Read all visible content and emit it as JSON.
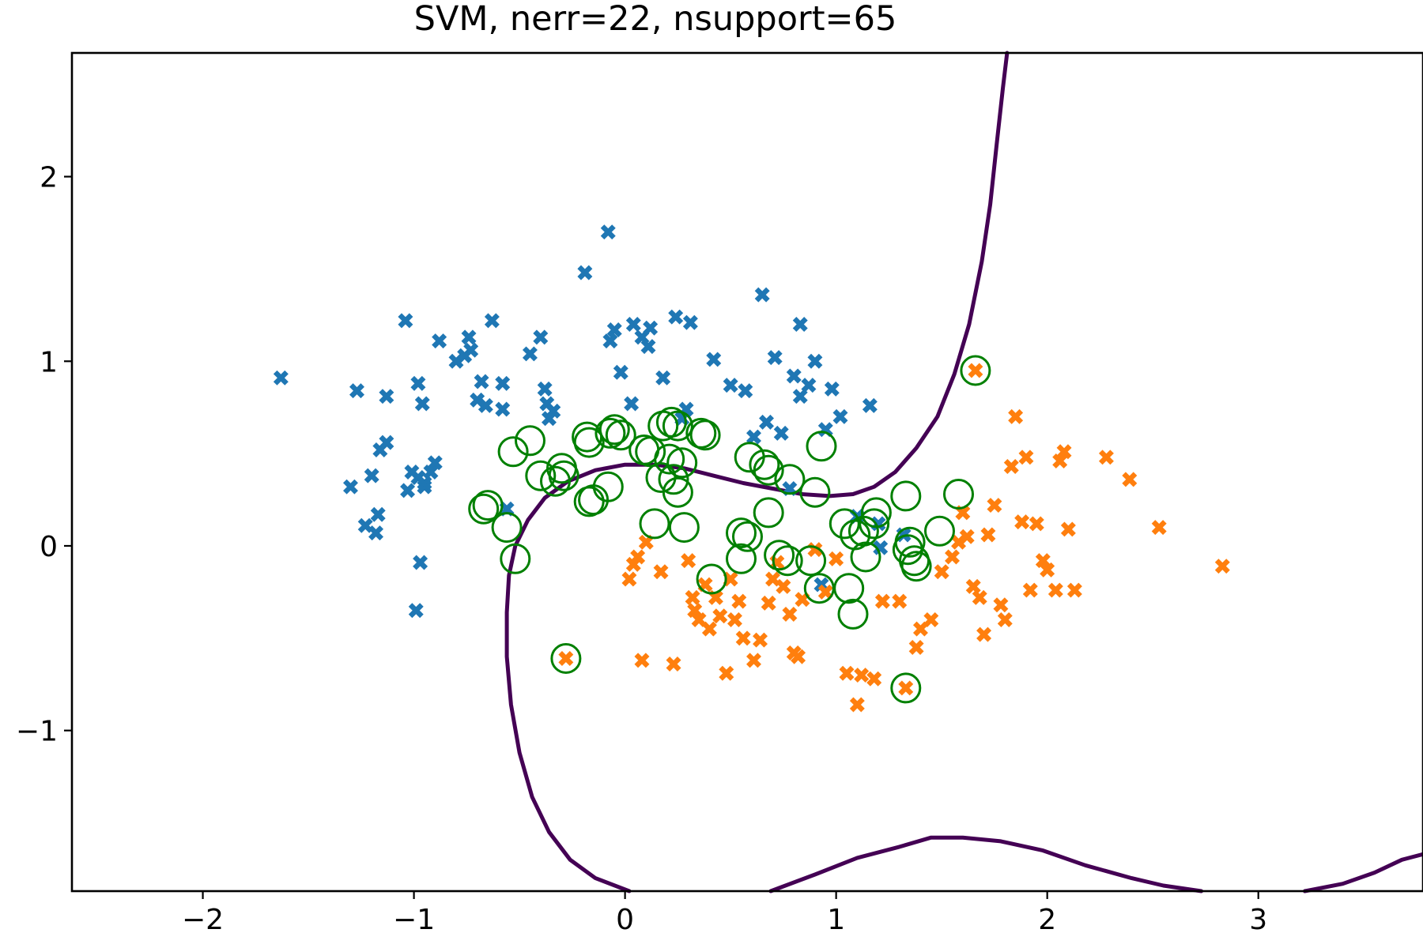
{
  "chart_data": {
    "type": "scatter",
    "title": "SVM, nerr=22, nsupport=65",
    "xlabel": "",
    "ylabel": "",
    "xlim": [
      -2.62,
      3.78
    ],
    "ylim": [
      -1.87,
      2.67
    ],
    "xticks": [
      -2,
      -1,
      0,
      1,
      2,
      3
    ],
    "yticks": [
      -1,
      0,
      1,
      2
    ],
    "xtick_labels": [
      "−2",
      "−1",
      "0",
      "1",
      "2",
      "3"
    ],
    "ytick_labels": [
      "−1",
      "0",
      "1",
      "2"
    ],
    "grid": false,
    "legend": "none",
    "colors": {
      "class_0": "#1f77b4",
      "class_1": "#ff7f0e",
      "support_vector_ring": "#008000",
      "decision_boundary": "#440154"
    },
    "marker": "X",
    "series": [
      {
        "values": [
          [
            -1.63,
            0.91
          ],
          [
            -1.27,
            0.84
          ],
          [
            -1.3,
            0.32
          ],
          [
            -1.23,
            0.11
          ],
          [
            -1.2,
            0.38
          ],
          [
            -1.18,
            0.07
          ],
          [
            -1.17,
            0.17
          ],
          [
            -1.16,
            0.52
          ],
          [
            -1.13,
            0.56
          ],
          [
            -1.13,
            0.81
          ],
          [
            -1.04,
            1.22
          ],
          [
            -1.03,
            0.3
          ],
          [
            -1.01,
            0.4
          ],
          [
            -0.98,
            0.88
          ],
          [
            -0.98,
            0.37
          ],
          [
            -0.97,
            -0.09
          ],
          [
            -0.96,
            0.77
          ],
          [
            -0.95,
            0.32
          ],
          [
            -0.95,
            0.34
          ],
          [
            -0.92,
            0.4
          ],
          [
            -0.9,
            0.45
          ],
          [
            -0.88,
            1.11
          ],
          [
            -0.99,
            -0.35
          ],
          [
            -0.8,
            1.0
          ],
          [
            -0.76,
            1.03
          ],
          [
            -0.74,
            1.13
          ],
          [
            -0.73,
            1.06
          ],
          [
            -0.7,
            0.79
          ],
          [
            -0.68,
            0.89
          ],
          [
            -0.66,
            0.76
          ],
          [
            -0.63,
            1.22
          ],
          [
            -0.58,
            0.88
          ],
          [
            -0.58,
            0.74
          ],
          [
            -0.56,
            0.2
          ],
          [
            -0.45,
            1.04
          ],
          [
            -0.4,
            1.13
          ],
          [
            -0.38,
            0.85
          ],
          [
            -0.37,
            0.77
          ],
          [
            -0.36,
            0.69
          ],
          [
            -0.34,
            0.73
          ],
          [
            -0.19,
            1.48
          ],
          [
            -0.08,
            1.7
          ],
          [
            -0.07,
            1.11
          ],
          [
            -0.05,
            1.17
          ],
          [
            -0.02,
            0.94
          ],
          [
            0.03,
            0.77
          ],
          [
            0.04,
            1.2
          ],
          [
            0.08,
            1.13
          ],
          [
            0.11,
            1.08
          ],
          [
            0.12,
            1.18
          ],
          [
            0.18,
            0.91
          ],
          [
            0.24,
            1.24
          ],
          [
            0.27,
            0.69
          ],
          [
            0.29,
            0.74
          ],
          [
            0.31,
            1.21
          ],
          [
            0.42,
            1.01
          ],
          [
            0.5,
            0.87
          ],
          [
            0.57,
            0.84
          ],
          [
            0.61,
            0.59
          ],
          [
            0.65,
            1.36
          ],
          [
            0.67,
            0.67
          ],
          [
            0.71,
            1.02
          ],
          [
            0.74,
            0.61
          ],
          [
            0.8,
            0.92
          ],
          [
            0.83,
            1.2
          ],
          [
            0.83,
            0.81
          ],
          [
            0.87,
            0.87
          ],
          [
            0.9,
            1.0
          ],
          [
            0.95,
            0.63
          ],
          [
            0.98,
            0.85
          ],
          [
            1.02,
            0.7
          ],
          [
            1.1,
            0.16
          ],
          [
            1.16,
            0.76
          ],
          [
            1.2,
            0.12
          ],
          [
            1.21,
            -0.01
          ],
          [
            1.32,
            0.06
          ],
          [
            0.93,
            -0.21
          ],
          [
            0.78,
            0.31
          ]
        ]
      },
      {
        "values": [
          [
            0.02,
            -0.18
          ],
          [
            0.04,
            -0.1
          ],
          [
            0.06,
            -0.06
          ],
          [
            0.1,
            0.02
          ],
          [
            0.17,
            -0.14
          ],
          [
            0.08,
            -0.62
          ],
          [
            0.23,
            -0.64
          ],
          [
            0.3,
            -0.08
          ],
          [
            0.32,
            -0.28
          ],
          [
            0.33,
            -0.35
          ],
          [
            0.35,
            -0.4
          ],
          [
            0.38,
            -0.21
          ],
          [
            0.4,
            -0.45
          ],
          [
            0.43,
            -0.28
          ],
          [
            0.45,
            -0.38
          ],
          [
            0.48,
            -0.69
          ],
          [
            0.5,
            -0.18
          ],
          [
            0.52,
            -0.4
          ],
          [
            0.54,
            -0.3
          ],
          [
            0.56,
            -0.5
          ],
          [
            0.61,
            -0.62
          ],
          [
            0.64,
            -0.51
          ],
          [
            0.68,
            -0.31
          ],
          [
            0.7,
            -0.18
          ],
          [
            0.72,
            -0.09
          ],
          [
            0.75,
            -0.22
          ],
          [
            0.78,
            -0.37
          ],
          [
            0.8,
            -0.58
          ],
          [
            0.82,
            -0.6
          ],
          [
            0.84,
            -0.29
          ],
          [
            0.9,
            -0.02
          ],
          [
            0.95,
            -0.25
          ],
          [
            1.0,
            -0.07
          ],
          [
            1.05,
            -0.69
          ],
          [
            1.1,
            -0.86
          ],
          [
            1.12,
            -0.7
          ],
          [
            1.18,
            -0.72
          ],
          [
            1.22,
            -0.3
          ],
          [
            1.3,
            -0.3
          ],
          [
            1.38,
            -0.55
          ],
          [
            1.4,
            -0.45
          ],
          [
            1.45,
            -0.4
          ],
          [
            1.5,
            -0.14
          ],
          [
            1.55,
            -0.06
          ],
          [
            1.58,
            0.02
          ],
          [
            1.6,
            0.18
          ],
          [
            1.62,
            0.05
          ],
          [
            1.65,
            -0.22
          ],
          [
            1.68,
            -0.28
          ],
          [
            1.7,
            -0.48
          ],
          [
            1.72,
            0.06
          ],
          [
            1.75,
            0.22
          ],
          [
            1.78,
            -0.32
          ],
          [
            1.8,
            -0.4
          ],
          [
            1.83,
            0.43
          ],
          [
            1.85,
            0.7
          ],
          [
            1.88,
            0.13
          ],
          [
            1.9,
            0.48
          ],
          [
            1.92,
            -0.24
          ],
          [
            1.95,
            0.12
          ],
          [
            1.98,
            -0.08
          ],
          [
            2.0,
            -0.13
          ],
          [
            2.04,
            -0.24
          ],
          [
            2.06,
            0.46
          ],
          [
            2.08,
            0.51
          ],
          [
            2.1,
            0.09
          ],
          [
            2.13,
            -0.24
          ],
          [
            2.28,
            0.48
          ],
          [
            2.39,
            0.36
          ],
          [
            2.53,
            0.1
          ],
          [
            2.83,
            -0.11
          ],
          [
            1.66,
            0.95
          ],
          [
            1.33,
            -0.77
          ],
          [
            -0.28,
            -0.61
          ]
        ]
      }
    ],
    "support_vectors": [
      [
        1.66,
        0.95
      ],
      [
        -0.53,
        0.51
      ],
      [
        -0.45,
        0.57
      ],
      [
        -0.4,
        0.38
      ],
      [
        -0.33,
        0.35
      ],
      [
        -0.29,
        0.38
      ],
      [
        -0.18,
        0.59
      ],
      [
        -0.17,
        0.56
      ],
      [
        -0.15,
        0.25
      ],
      [
        -0.07,
        0.61
      ],
      [
        -0.05,
        0.63
      ],
      [
        -0.02,
        0.6
      ],
      [
        -0.08,
        0.32
      ],
      [
        0.12,
        0.51
      ],
      [
        0.18,
        0.65
      ],
      [
        0.21,
        0.47
      ],
      [
        0.22,
        0.67
      ],
      [
        0.27,
        0.45
      ],
      [
        0.17,
        0.37
      ],
      [
        0.23,
        0.36
      ],
      [
        0.25,
        0.29
      ],
      [
        0.36,
        0.61
      ],
      [
        0.38,
        0.6
      ],
      [
        0.59,
        0.48
      ],
      [
        0.66,
        0.44
      ],
      [
        0.68,
        0.41
      ],
      [
        0.78,
        0.36
      ],
      [
        0.9,
        0.29
      ],
      [
        0.93,
        0.54
      ],
      [
        -0.67,
        0.2
      ],
      [
        -0.65,
        0.22
      ],
      [
        -0.56,
        0.1
      ],
      [
        -0.52,
        -0.07
      ],
      [
        -0.17,
        0.24
      ],
      [
        0.14,
        0.12
      ],
      [
        0.28,
        0.1
      ],
      [
        0.55,
        0.07
      ],
      [
        0.58,
        0.05
      ],
      [
        0.68,
        0.18
      ],
      [
        0.55,
        -0.07
      ],
      [
        0.73,
        -0.05
      ],
      [
        0.77,
        -0.08
      ],
      [
        0.88,
        -0.08
      ],
      [
        1.04,
        0.12
      ],
      [
        1.09,
        0.06
      ],
      [
        1.13,
        0.08
      ],
      [
        1.19,
        0.18
      ],
      [
        1.18,
        0.12
      ],
      [
        1.14,
        -0.06
      ],
      [
        1.33,
        0.27
      ],
      [
        1.34,
        -0.02
      ],
      [
        1.35,
        0.02
      ],
      [
        1.37,
        -0.08
      ],
      [
        1.49,
        0.08
      ],
      [
        1.58,
        0.28
      ],
      [
        0.41,
        -0.18
      ],
      [
        0.92,
        -0.23
      ],
      [
        1.06,
        -0.23
      ],
      [
        1.08,
        -0.37
      ],
      [
        1.33,
        -0.77
      ],
      [
        -0.28,
        -0.61
      ],
      [
        0.25,
        0.65
      ],
      [
        -0.3,
        0.42
      ],
      [
        0.09,
        0.52
      ],
      [
        1.38,
        -0.11
      ]
    ],
    "decision_boundary": [
      [
        [
          0.02,
          -1.87
        ],
        [
          -0.14,
          -1.8
        ],
        [
          -0.26,
          -1.7
        ],
        [
          -0.36,
          -1.55
        ],
        [
          -0.44,
          -1.36
        ],
        [
          -0.5,
          -1.12
        ],
        [
          -0.54,
          -0.86
        ],
        [
          -0.56,
          -0.6
        ],
        [
          -0.56,
          -0.36
        ],
        [
          -0.55,
          -0.16
        ],
        [
          -0.52,
          0.0
        ],
        [
          -0.46,
          0.14
        ],
        [
          -0.38,
          0.26
        ],
        [
          -0.27,
          0.35
        ],
        [
          -0.14,
          0.41
        ],
        [
          0.0,
          0.44
        ],
        [
          0.14,
          0.44
        ],
        [
          0.28,
          0.42
        ],
        [
          0.42,
          0.38
        ],
        [
          0.56,
          0.34
        ],
        [
          0.7,
          0.31
        ],
        [
          0.84,
          0.28
        ],
        [
          0.97,
          0.27
        ],
        [
          1.08,
          0.28
        ],
        [
          1.18,
          0.32
        ],
        [
          1.28,
          0.4
        ],
        [
          1.38,
          0.53
        ],
        [
          1.48,
          0.7
        ],
        [
          1.56,
          0.93
        ],
        [
          1.63,
          1.2
        ],
        [
          1.69,
          1.54
        ],
        [
          1.73,
          1.85
        ],
        [
          1.76,
          2.17
        ],
        [
          1.79,
          2.48
        ],
        [
          1.81,
          2.67
        ]
      ],
      [
        [
          0.69,
          -1.87
        ],
        [
          0.9,
          -1.78
        ],
        [
          1.1,
          -1.69
        ],
        [
          1.3,
          -1.63
        ],
        [
          1.45,
          -1.58
        ],
        [
          1.6,
          -1.58
        ],
        [
          1.78,
          -1.6
        ],
        [
          1.98,
          -1.65
        ],
        [
          2.18,
          -1.73
        ],
        [
          2.4,
          -1.8
        ],
        [
          2.55,
          -1.84
        ],
        [
          2.73,
          -1.87
        ]
      ],
      [
        [
          3.22,
          -1.87
        ],
        [
          3.4,
          -1.83
        ],
        [
          3.55,
          -1.77
        ],
        [
          3.68,
          -1.7
        ],
        [
          3.78,
          -1.67
        ]
      ]
    ]
  }
}
